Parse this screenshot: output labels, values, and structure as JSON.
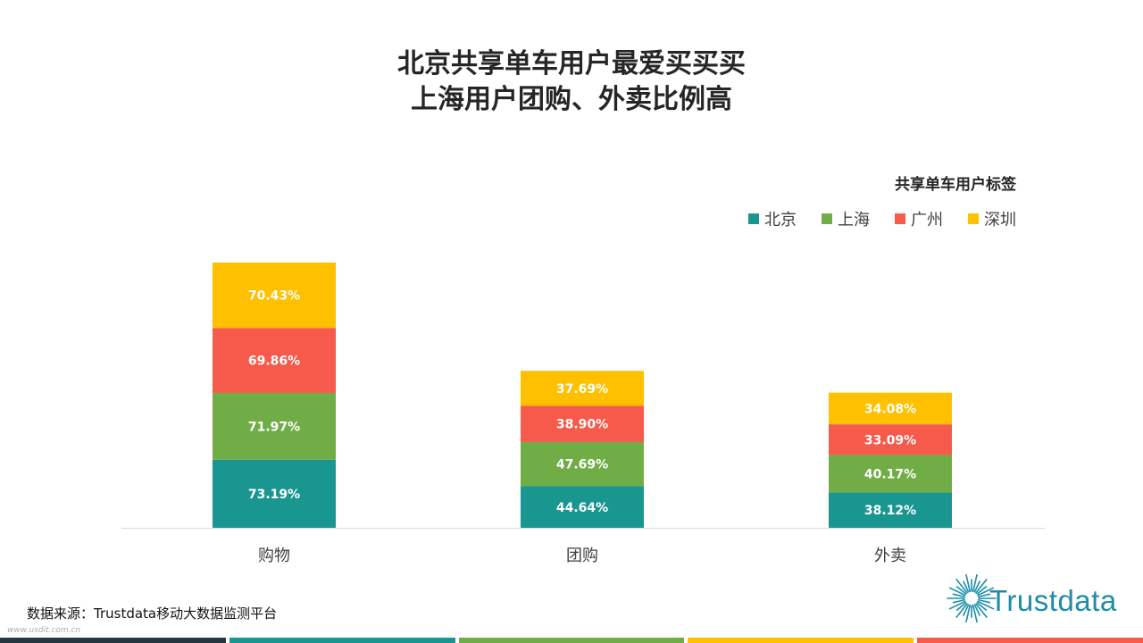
{
  "title_line1": "北京共享单车用户最爱买买买",
  "title_line2": "上海用户团购、外卖比例高",
  "legend_title": "共享单车用户标签",
  "source": "数据来源：Trustdata移动大数据监测平台",
  "watermark": "www.usdit.com.cn",
  "logo_text": "Trustdata",
  "footer_colors": [
    "#263640",
    "#1a9690",
    "#70ad47",
    "#ffc000",
    "#f55a4a"
  ],
  "chart_data": {
    "type": "bar",
    "stacked": true,
    "categories": [
      "购物",
      "团购",
      "外卖"
    ],
    "series": [
      {
        "name": "北京",
        "color": "#1a9690",
        "values": [
          73.19,
          44.64,
          38.12
        ]
      },
      {
        "name": "上海",
        "color": "#70ad47",
        "values": [
          71.97,
          47.69,
          40.17
        ]
      },
      {
        "name": "广州",
        "color": "#f55a4a",
        "values": [
          69.86,
          38.9,
          33.09
        ]
      },
      {
        "name": "深圳",
        "color": "#ffc000",
        "values": [
          70.43,
          37.69,
          34.08
        ]
      }
    ],
    "value_labels": [
      [
        "73.19%",
        "44.64%",
        "38.12%"
      ],
      [
        "71.97%",
        "47.69%",
        "40.17%"
      ],
      [
        "69.86%",
        "38.90%",
        "33.09%"
      ],
      [
        "70.43%",
        "37.69%",
        "34.08%"
      ]
    ],
    "legend_position": "top-right",
    "grid": false
  }
}
